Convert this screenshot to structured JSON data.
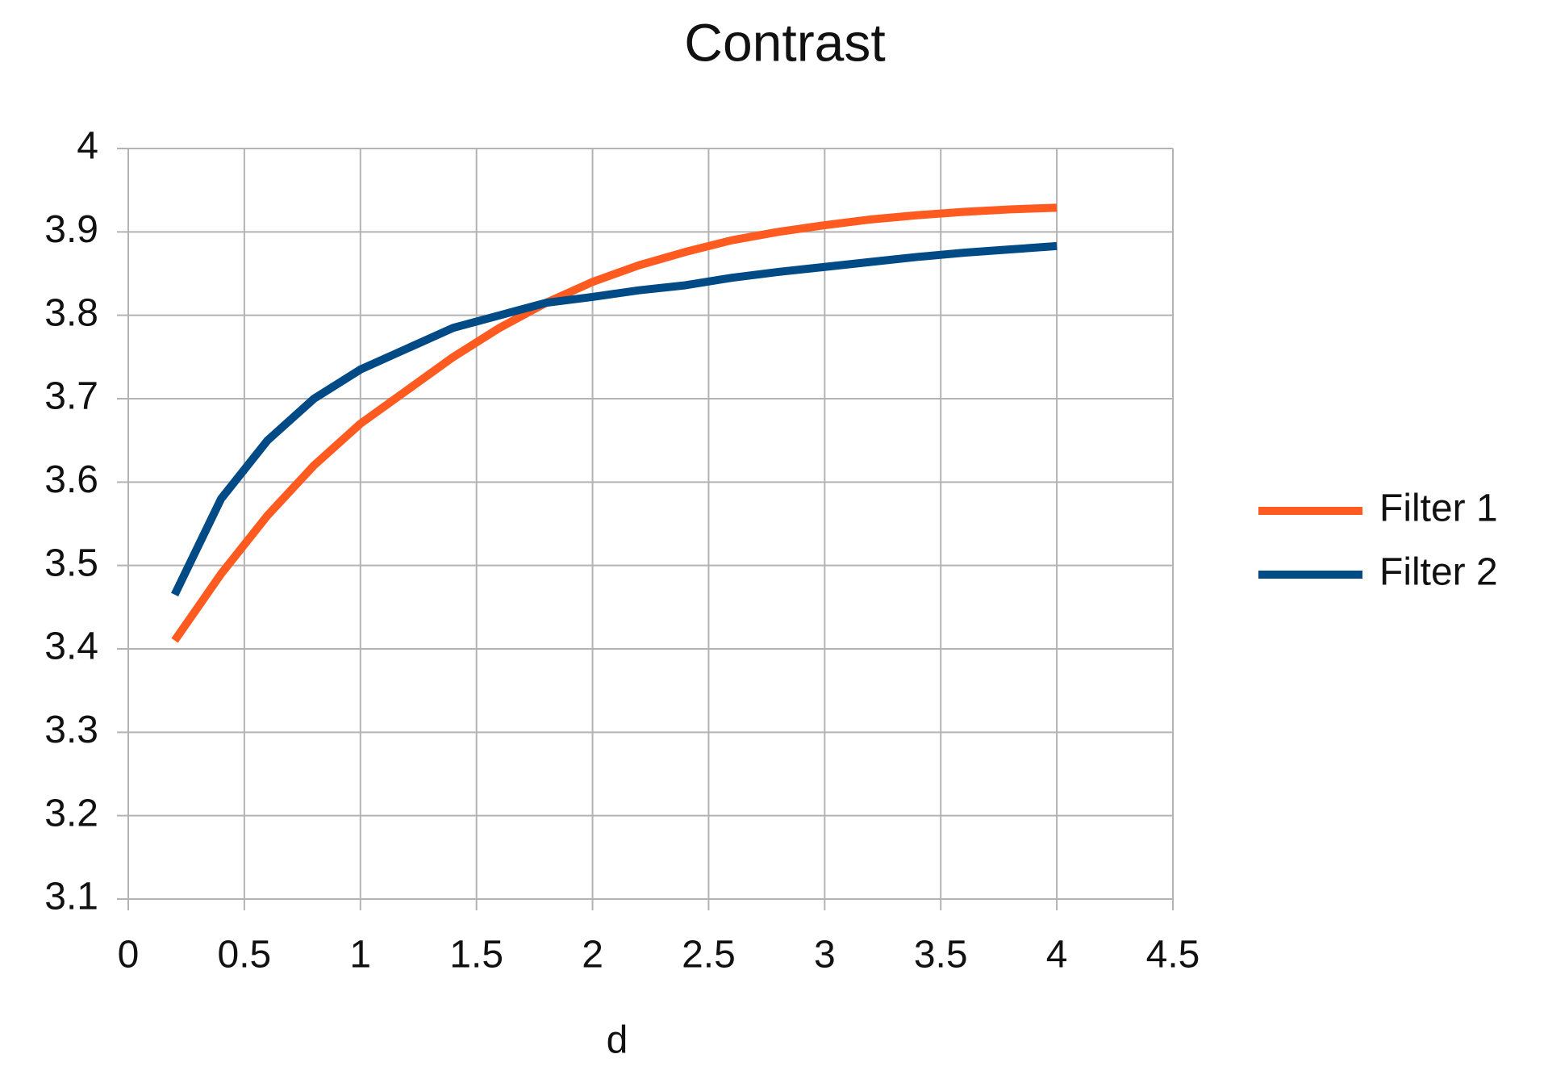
{
  "chart_data": {
    "type": "line",
    "title": "Contrast",
    "x_label": "d",
    "x": [
      0.2,
      0.4,
      0.6,
      0.8,
      1.0,
      1.2,
      1.4,
      1.6,
      1.8,
      2.0,
      2.2,
      2.4,
      2.6,
      2.8,
      3.0,
      3.2,
      3.4,
      3.6,
      3.8,
      4.0
    ],
    "series": [
      {
        "name": "Filter 1",
        "color": "#ff5a1f",
        "values": [
          3.41,
          3.49,
          3.56,
          3.62,
          3.67,
          3.71,
          3.75,
          3.785,
          3.815,
          3.84,
          3.86,
          3.876,
          3.89,
          3.9,
          3.908,
          3.915,
          3.92,
          3.924,
          3.927,
          3.929
        ]
      },
      {
        "name": "Filter 2",
        "color": "#004a86",
        "values": [
          3.465,
          3.58,
          3.65,
          3.7,
          3.735,
          3.76,
          3.785,
          3.8,
          3.815,
          3.822,
          3.83,
          3.836,
          3.845,
          3.852,
          3.858,
          3.864,
          3.87,
          3.875,
          3.879,
          3.883
        ]
      }
    ],
    "xlim": [
      0,
      4.5
    ],
    "xticks": [
      0,
      0.5,
      1,
      1.5,
      2,
      2.5,
      3,
      3.5,
      4,
      4.5
    ],
    "ylim": [
      3.1,
      4
    ],
    "yticks": [
      3.1,
      3.2,
      3.3,
      3.4,
      3.5,
      3.6,
      3.7,
      3.8,
      3.9,
      4
    ],
    "grid": true,
    "legend": "right"
  }
}
